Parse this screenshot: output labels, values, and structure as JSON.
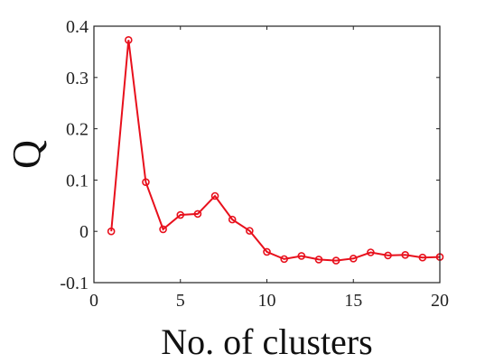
{
  "chart_data": {
    "type": "line",
    "title": "",
    "xlabel": "No. of clusters",
    "ylabel": "Q",
    "xlim": [
      0,
      20
    ],
    "ylim": [
      -0.1,
      0.4
    ],
    "grid": false,
    "xticks": [
      0,
      5,
      10,
      15,
      20
    ],
    "xtick_labels": [
      "0",
      "5",
      "10",
      "15",
      "20"
    ],
    "yticks": [
      -0.1,
      0,
      0.1,
      0.2,
      0.3,
      0.4
    ],
    "ytick_labels": [
      "-0.1",
      "0",
      "0.1",
      "0.2",
      "0.3",
      "0.4"
    ],
    "series": [
      {
        "color": "#e8101c",
        "marker": "circle",
        "x": [
          1,
          2,
          3,
          4,
          5,
          6,
          7,
          8,
          9,
          10,
          11,
          12,
          13,
          14,
          15,
          16,
          17,
          18,
          19,
          20
        ],
        "y": [
          0.0,
          0.373,
          0.096,
          0.004,
          0.032,
          0.034,
          0.069,
          0.023,
          0.001,
          -0.04,
          -0.054,
          -0.048,
          -0.055,
          -0.057,
          -0.053,
          -0.041,
          -0.047,
          -0.046,
          -0.051,
          -0.05
        ]
      }
    ]
  }
}
